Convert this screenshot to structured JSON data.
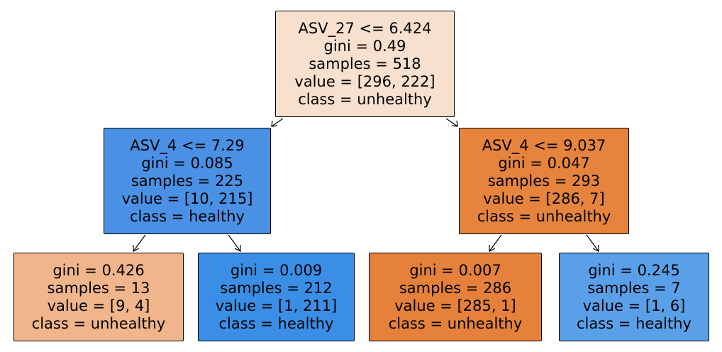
{
  "nodes": [
    {
      "id": "node-0",
      "split": "ASV_27 <= 6.424",
      "gini": "gini = 0.49",
      "samples": "samples = 518",
      "value": "value = [296, 222]",
      "class": "class = unhealthy",
      "fill": "#f8e0ce"
    },
    {
      "id": "node-1",
      "split": "ASV_4 <= 7.29",
      "gini": "gini = 0.085",
      "samples": "samples = 225",
      "value": "value = [10, 215]",
      "class": "class = healthy",
      "fill": "#4a91e5"
    },
    {
      "id": "node-2",
      "split": "ASV_4 <= 9.037",
      "gini": "gini = 0.047",
      "samples": "samples = 293",
      "value": "value = [286, 7]",
      "class": "class = unhealthy",
      "fill": "#e6843e"
    },
    {
      "id": "node-3",
      "gini": "gini = 0.426",
      "samples": "samples = 13",
      "value": "value = [9, 4]",
      "class": "class = unhealthy",
      "fill": "#f0b58a"
    },
    {
      "id": "node-4",
      "gini": "gini = 0.009",
      "samples": "samples = 212",
      "value": "value = [1, 211]",
      "class": "class = healthy",
      "fill": "#3a8ee5"
    },
    {
      "id": "node-5",
      "gini": "gini = 0.007",
      "samples": "samples = 286",
      "value": "value = [285, 1]",
      "class": "class = unhealthy",
      "fill": "#e5813a"
    },
    {
      "id": "node-6",
      "gini": "gini = 0.245",
      "samples": "samples = 7",
      "value": "value = [1, 6]",
      "class": "class = healthy",
      "fill": "#5aa0e9"
    }
  ],
  "edges": [
    {
      "from": "node-0",
      "to": "node-1"
    },
    {
      "from": "node-0",
      "to": "node-2"
    },
    {
      "from": "node-1",
      "to": "node-3"
    },
    {
      "from": "node-1",
      "to": "node-4"
    },
    {
      "from": "node-2",
      "to": "node-5"
    },
    {
      "from": "node-2",
      "to": "node-6"
    }
  ]
}
